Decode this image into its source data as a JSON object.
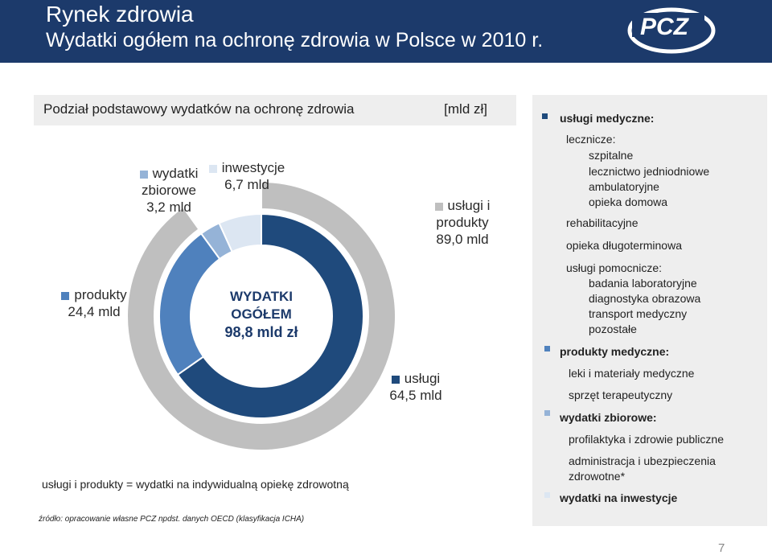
{
  "header": {
    "title": "Rynek zdrowia",
    "subtitle": "Wydatki ogółem na ochronę zdrowia w Polsce w 2010 r.",
    "logo_text": "PCZ",
    "bg_color": "#1c3a6b"
  },
  "chart_header": {
    "title": "Podział podstawowy wydatków na ochronę zdrowia",
    "unit": "[mld zł]"
  },
  "chart_data": [
    {
      "type": "pie",
      "variant": "donut-inner",
      "center_label": [
        "WYDATKI",
        "OGÓŁEM",
        "98,8 mld zł"
      ],
      "categories": [
        "usługi",
        "produkty",
        "wydatki zbiorowe",
        "inwestycje"
      ],
      "values": [
        64.5,
        24.4,
        3.2,
        6.7
      ],
      "labels": [
        "usługi 64,5 mld",
        "produkty 24,4 mld",
        "wydatki zbiorowe 3,2 mld",
        "inwestycje 6,7 mld"
      ],
      "colors": [
        "#1f4a7c",
        "#4f81bd",
        "#95b3d7",
        "#dce6f2"
      ]
    },
    {
      "type": "pie",
      "variant": "donut-outer",
      "categories": [
        "usługi i produkty"
      ],
      "values": [
        89.0
      ],
      "labels": [
        "usługi i produkty 89,0 mld"
      ],
      "colors": [
        "#bfbfbf"
      ]
    }
  ],
  "labels": {
    "inwestycje": [
      "inwestycje",
      "6,7 mld"
    ],
    "zbiorowe": [
      "wydatki",
      "zbiorowe",
      "3,2 mld"
    ],
    "uslugi_produkty": [
      "usługi i",
      "produkty",
      "89,0 mld"
    ],
    "produkty": [
      "produkty",
      "24,4 mld"
    ],
    "uslugi": [
      "usługi",
      "64,5 mld"
    ]
  },
  "footnote": "usługi i produkty = wydatki na indywidualną opiekę zdrowotną",
  "source": "źródło: opracowanie własne PCZ npdst. danych OECD (klasyfikacja ICHA)",
  "page_number": "7",
  "right_panel": {
    "uslugi_medyczne": "usługi medyczne:",
    "lecznicze": "lecznicze:",
    "szpitalne": "szpitalne",
    "lecznictwo1": "lecznictwo jedniodniowe",
    "lecznictwo2": "ambulatoryjne",
    "opieka_domowa": "opieka domowa",
    "rehabilitacyjne": "rehabilitacyjne",
    "opieka_dlugo": "opieka długoterminowa",
    "pomocnicze": "usługi pomocnicze:",
    "badania": "badania laboratoryjne",
    "diagnostyka": "diagnostyka obrazowa",
    "transport": "transport medyczny",
    "pozostale": "pozostałe",
    "produkty_medyczne": "produkty medyczne:",
    "leki": "leki i materiały medyczne",
    "sprzet": "sprzęt terapeutyczny",
    "zbiorowe": "wydatki zbiorowe:",
    "profilaktyka": "profilaktyka i zdrowie publiczne",
    "administracja1": "administracja i ubezpieczenia",
    "administracja2": "zdrowotne*",
    "inwestycje": "wydatki na inwestycje"
  }
}
